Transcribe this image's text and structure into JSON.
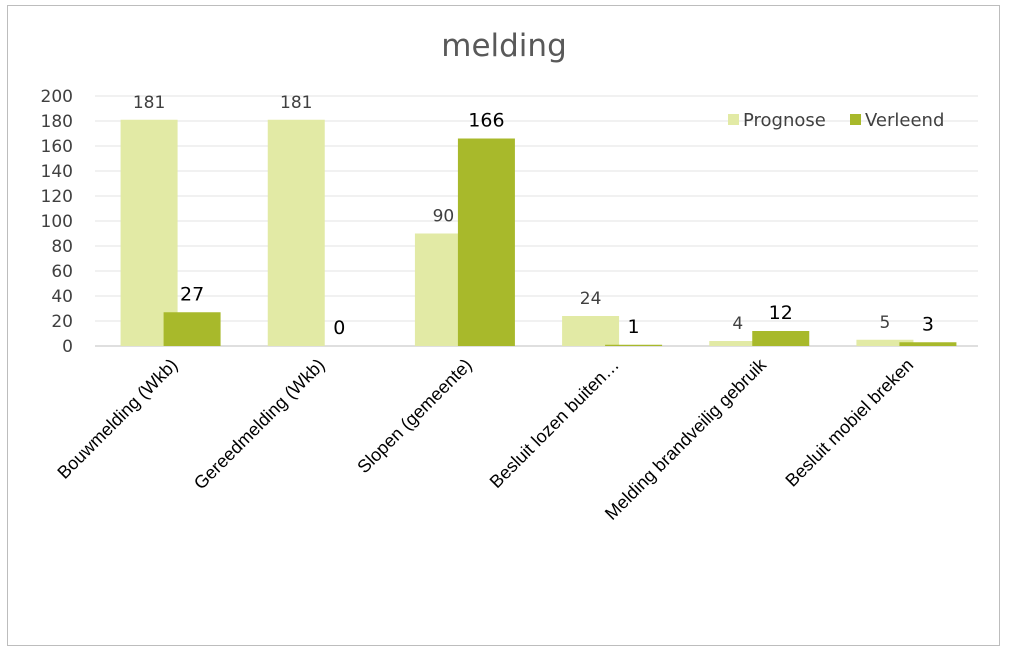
{
  "chart_data": {
    "type": "bar",
    "title": "melding",
    "xlabel": "",
    "ylabel": "",
    "ylim": [
      0,
      200
    ],
    "yticks": [
      0,
      20,
      40,
      60,
      80,
      100,
      120,
      140,
      160,
      180,
      200
    ],
    "grid": true,
    "legend_position": "top-right",
    "categories": [
      "Bouwmelding (Wkb)",
      "Gereedmelding (Wkb)",
      "Slopen (gemeente)",
      "Besluit lozen buiten…",
      "Melding brandveilig gebruik",
      "Besluit mobiel breken"
    ],
    "series": [
      {
        "name": "Prognose",
        "values": [
          181,
          181,
          90,
          24,
          4,
          5
        ],
        "color": "#e2eaa5",
        "label_color": "#404040"
      },
      {
        "name": "Verleend",
        "values": [
          27,
          0,
          166,
          1,
          12,
          3
        ],
        "color": "#a8b92b",
        "label_color": "#000000"
      }
    ]
  }
}
